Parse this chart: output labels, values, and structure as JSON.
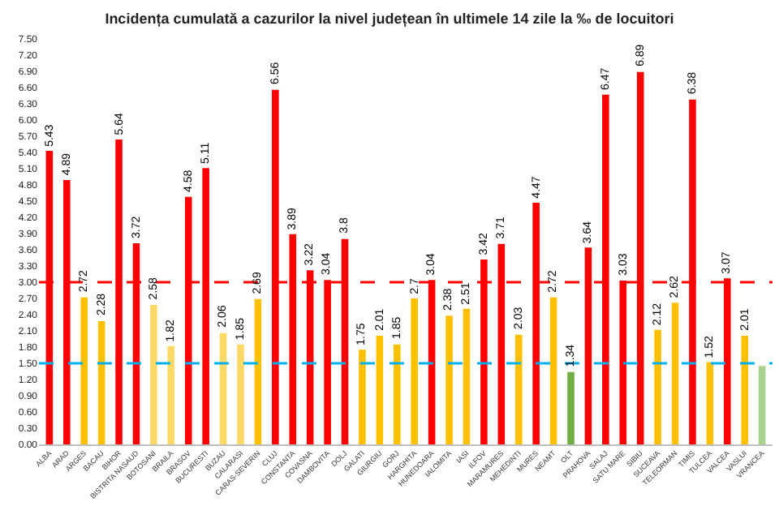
{
  "chart_data": {
    "type": "bar",
    "title": "Incidența cumulată a cazurilor la nivel județean în ultimele 14 zile la ‰ de locuitori",
    "categories": [
      "ALBA",
      "ARAD",
      "ARGES",
      "BACAU",
      "BIHOR",
      "BISTRITA NASAUD",
      "BOTOSANI",
      "BRAILA",
      "BRASOV",
      "BUCURESTI",
      "BUZAU",
      "CALARASI",
      "CARAS-SEVERIN",
      "CLUJ",
      "CONSTANTA",
      "COVASNA",
      "DAMBOVITA",
      "DOLJ",
      "GALATI",
      "GIURGIU",
      "GORJ",
      "HARGHITA",
      "HUNEDOARA",
      "IALOMITA",
      "IASI",
      "ILFOV",
      "MARAMURES",
      "MEHEDINTI",
      "MURES",
      "NEAMT",
      "OLT",
      "PRAHOVA",
      "SALAJ",
      "SATU MARE",
      "SIBIU",
      "SUCEAVA",
      "TELEORMAN",
      "TIMIS",
      "TULCEA",
      "VALCEA",
      "VASLUI",
      "VRANCEA"
    ],
    "values": [
      5.43,
      4.89,
      2.72,
      2.28,
      5.64,
      3.72,
      2.58,
      1.82,
      4.58,
      5.11,
      2.06,
      1.85,
      2.69,
      6.56,
      3.89,
      3.22,
      3.04,
      3.8,
      1.75,
      2.01,
      1.85,
      2.7,
      3.04,
      2.38,
      2.51,
      3.42,
      3.71,
      2.03,
      4.47,
      2.72,
      1.34,
      3.64,
      6.47,
      3.03,
      6.89,
      2.12,
      2.62,
      6.38,
      1.52,
      3.07,
      2.01,
      1.45
    ],
    "value_labels": [
      "5.43",
      "4.89",
      "2.72",
      "2.28",
      "5.64",
      "3.72",
      "2.58",
      "1.82",
      "4.58",
      "5.11",
      "2.06",
      "1.85",
      "2.69",
      "6.56",
      "3.89",
      "3.22",
      "3.04",
      "3.8",
      "1.75",
      "2.01",
      "1.85",
      "2.7",
      "3.04",
      "2.38",
      "2.51",
      "3.42",
      "3.71",
      "2.03",
      "4.47",
      "2.72",
      "1.34",
      "3.64",
      "6.47",
      "3.03",
      "6.89",
      "2.12",
      "2.62",
      "6.38",
      "1.52",
      "3.07",
      "2.01",
      null
    ],
    "colors": [
      "#ff0000",
      "#ff0000",
      "#ffc000",
      "#ffc000",
      "#ff0000",
      "#ff0000",
      "#ffd966",
      "#ffd966",
      "#ff0000",
      "#ff0000",
      "#ffd966",
      "#ffd966",
      "#ffc000",
      "#ff0000",
      "#ff0000",
      "#ff0000",
      "#ff0000",
      "#ff0000",
      "#ffc000",
      "#ffc000",
      "#ffc000",
      "#ffc000",
      "#ff0000",
      "#ffc000",
      "#ffc000",
      "#ff0000",
      "#ff0000",
      "#ffc000",
      "#ff0000",
      "#ffc000",
      "#70ad47",
      "#ff0000",
      "#ff0000",
      "#ff0000",
      "#ff0000",
      "#ffc000",
      "#ffc000",
      "#ff0000",
      "#ffc000",
      "#ff0000",
      "#ffc000",
      "#a9d18e"
    ],
    "ylim": [
      0,
      7.5
    ],
    "yticks": [
      {
        "value": 0,
        "label": "0.00"
      },
      {
        "value": 0.3,
        "label": "0.30"
      },
      {
        "value": 0.6,
        "label": "0.60"
      },
      {
        "value": 0.9,
        "label": "0.90"
      },
      {
        "value": 1.2,
        "label": "1.20"
      },
      {
        "value": 1.5,
        "label": "1.50"
      },
      {
        "value": 1.8,
        "label": "1.80"
      },
      {
        "value": 2.1,
        "label": "2.10"
      },
      {
        "value": 2.4,
        "label": "2.40"
      },
      {
        "value": 2.7,
        "label": "2.70"
      },
      {
        "value": 3,
        "label": "3.00"
      },
      {
        "value": 3.3,
        "label": "3.30"
      },
      {
        "value": 3.6,
        "label": "3.60"
      },
      {
        "value": 3.9,
        "label": "3.90"
      },
      {
        "value": 4.2,
        "label": "4.20"
      },
      {
        "value": 4.5,
        "label": "4.50"
      },
      {
        "value": 4.8,
        "label": "4.80"
      },
      {
        "value": 5.1,
        "label": "5.10"
      },
      {
        "value": 5.4,
        "label": "5.40"
      },
      {
        "value": 5.7,
        "label": "5.70"
      },
      {
        "value": 6,
        "label": "6.00"
      },
      {
        "value": 6.3,
        "label": "6.30"
      },
      {
        "value": 6.6,
        "label": "6.60"
      },
      {
        "value": 6.9,
        "label": "6.90"
      },
      {
        "value": 7.2,
        "label": "7.20"
      },
      {
        "value": 7.5,
        "label": "7.50"
      }
    ],
    "ref_lines": [
      {
        "axis": "y",
        "value": 3,
        "label": null,
        "color": "#ff0000",
        "line_style": "dashed"
      },
      {
        "axis": "y",
        "value": 1.5,
        "label": null,
        "color": "#00b0f0",
        "line_style": "dashed"
      }
    ],
    "legend": false
  }
}
